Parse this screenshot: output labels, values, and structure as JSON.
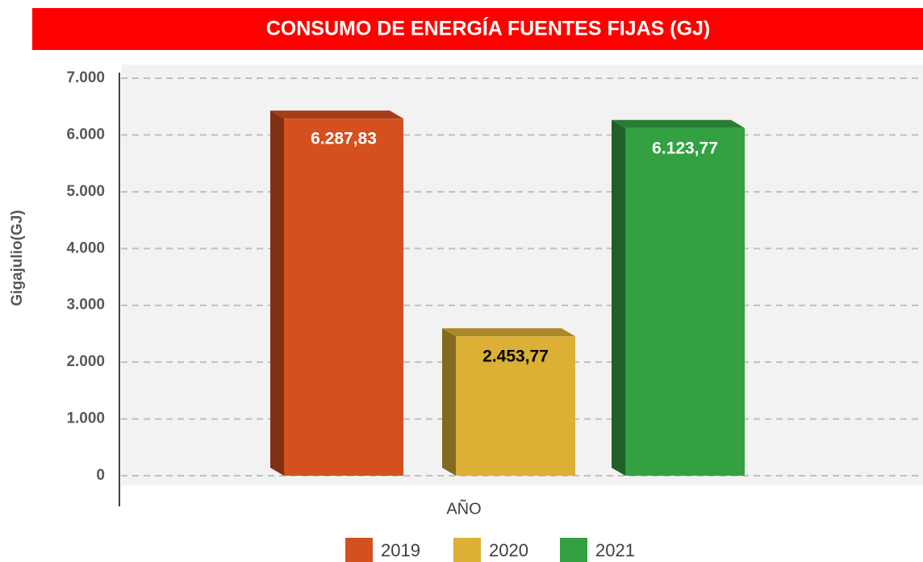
{
  "chart_data": {
    "type": "bar",
    "title": "CONSUMO DE ENERGÍA FUENTES FIJAS (GJ)",
    "y_label": "Gigajulio(GJ)",
    "x_label": "AÑO",
    "categories": [
      "AÑO"
    ],
    "series": [
      {
        "name": "2019",
        "color": "#d4501f",
        "label_color": "#ffffff",
        "values": [
          6287.83
        ],
        "value_labels": [
          "6.287,83"
        ]
      },
      {
        "name": "2020",
        "color": "#dbb035",
        "label_color": "#000000",
        "values": [
          2453.77
        ],
        "value_labels": [
          "2.453,77"
        ]
      },
      {
        "name": "2021",
        "color": "#33a042",
        "label_color": "#ffffff",
        "values": [
          6123.77
        ],
        "value_labels": [
          "6.123,77"
        ]
      }
    ],
    "ylim": [
      0,
      7000
    ],
    "yticks": [
      0,
      {
        "value": 1000,
        "label": "1.000"
      },
      {
        "value": 2000,
        "label": "2.000"
      },
      {
        "value": 3000,
        "label": "3.000"
      },
      {
        "value": 4000,
        "label": "4.000"
      },
      {
        "value": 5000,
        "label": "5.000"
      },
      {
        "value": 6000,
        "label": "6.000"
      },
      {
        "value": 7000,
        "label": "7.000"
      }
    ],
    "grid": true,
    "legend": "bottom"
  }
}
